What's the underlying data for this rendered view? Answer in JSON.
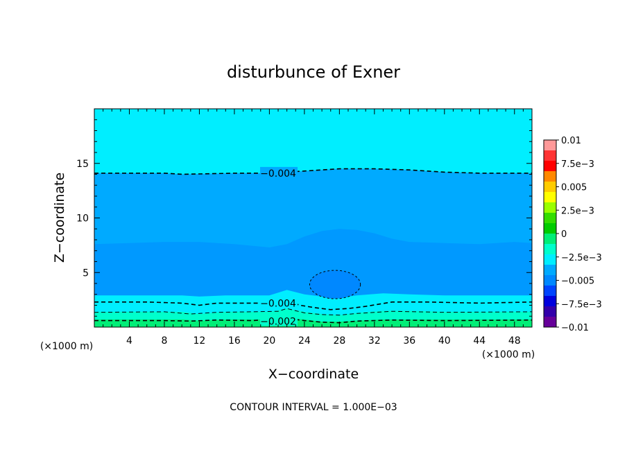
{
  "chart_data": {
    "type": "contour",
    "title": "disturbunce of Exner",
    "xlabel": "X−coordinate",
    "ylabel": "Z−coordinate",
    "x_unit": "(×1000 m)",
    "y_unit": "(×1000 m)",
    "xlim": [
      0,
      50
    ],
    "ylim": [
      0,
      20
    ],
    "x_ticks": [
      4,
      8,
      12,
      16,
      20,
      24,
      28,
      32,
      36,
      40,
      44,
      48
    ],
    "y_ticks": [
      5,
      10,
      15
    ],
    "contour_interval_text": "CONTOUR INTERVAL = 1.000E−03",
    "colorbar": {
      "labels": [
        "0.01",
        "7.5e−3",
        "0.005",
        "2.5e−3",
        "0",
        "−2.5e−3",
        "−0.005",
        "−7.5e−3",
        "−0.01"
      ],
      "colors": [
        "#ff9999",
        "#ff3333",
        "#ff0000",
        "#ff8800",
        "#ffcc00",
        "#ffff00",
        "#99ff00",
        "#33dd00",
        "#00cc00",
        "#00ee77",
        "#00ffcc",
        "#00eeff",
        "#00aaff",
        "#0088ff",
        "#0044ff",
        "#0000dd",
        "#3300aa",
        "#660099"
      ]
    },
    "contour_labels": [
      {
        "text": "−0.004",
        "x": 21.0,
        "z": 14.1
      },
      {
        "text": "−0.004",
        "x": 21.0,
        "z": 2.2
      },
      {
        "text": "−0.002",
        "x": 21.0,
        "z": 0.55
      }
    ],
    "bands": [
      {
        "level": "−0.001",
        "color": "#00ee77",
        "top": [
          [
            0,
            0.7
          ],
          [
            10,
            0.7
          ],
          [
            12,
            0.6
          ],
          [
            15,
            0.7
          ],
          [
            20,
            0.7
          ],
          [
            22,
            0.8
          ],
          [
            24,
            0.7
          ],
          [
            26,
            0.5
          ],
          [
            28,
            0.5
          ],
          [
            30,
            0.6
          ],
          [
            33,
            0.7
          ],
          [
            36,
            0.7
          ],
          [
            40,
            0.7
          ],
          [
            44,
            0.7
          ],
          [
            48,
            0.7
          ],
          [
            50,
            0.7
          ]
        ]
      },
      {
        "level": "−0.002",
        "color": "#00ffcc",
        "top": [
          [
            0,
            1.4
          ],
          [
            10,
            1.4
          ],
          [
            12,
            1.2
          ],
          [
            15,
            1.4
          ],
          [
            20,
            1.4
          ],
          [
            22,
            1.7
          ],
          [
            24,
            1.4
          ],
          [
            26,
            1.2
          ],
          [
            28,
            1.1
          ],
          [
            30,
            1.3
          ],
          [
            33,
            1.5
          ],
          [
            36,
            1.5
          ],
          [
            40,
            1.4
          ],
          [
            44,
            1.4
          ],
          [
            48,
            1.4
          ],
          [
            50,
            1.4
          ]
        ]
      },
      {
        "level": "−0.003",
        "color": "#00eeff",
        "top": [
          [
            0,
            2.9
          ],
          [
            10,
            2.9
          ],
          [
            12,
            2.8
          ],
          [
            15,
            2.9
          ],
          [
            20,
            2.9
          ],
          [
            22,
            3.4
          ],
          [
            24,
            3.0
          ],
          [
            26,
            2.8
          ],
          [
            28,
            2.7
          ],
          [
            30,
            2.9
          ],
          [
            33,
            3.1
          ],
          [
            36,
            3.0
          ],
          [
            40,
            2.9
          ],
          [
            44,
            2.9
          ],
          [
            48,
            2.9
          ],
          [
            50,
            2.9
          ]
        ]
      },
      {
        "level": "−0.004",
        "color": "#00aaff",
        "top": [
          [
            0,
            7.6
          ],
          [
            4,
            7.7
          ],
          [
            8,
            7.8
          ],
          [
            12,
            7.8
          ],
          [
            16,
            7.6
          ],
          [
            20,
            7.3
          ],
          [
            22,
            7.6
          ],
          [
            24,
            8.3
          ],
          [
            26,
            8.8
          ],
          [
            28,
            9.0
          ],
          [
            30,
            8.9
          ],
          [
            32,
            8.6
          ],
          [
            34,
            8.1
          ],
          [
            36,
            7.8
          ],
          [
            40,
            7.7
          ],
          [
            44,
            7.6
          ],
          [
            48,
            7.8
          ],
          [
            50,
            7.7
          ]
        ]
      }
    ],
    "contours_dashed": [
      {
        "level": "−0.004",
        "points": [
          [
            0,
            14.1
          ],
          [
            8,
            14.1
          ],
          [
            10,
            14.0
          ],
          [
            16,
            14.1
          ],
          [
            20,
            14.1
          ],
          [
            24,
            14.3
          ],
          [
            28,
            14.5
          ],
          [
            32,
            14.5
          ],
          [
            36,
            14.4
          ],
          [
            40,
            14.2
          ],
          [
            44,
            14.1
          ],
          [
            50,
            14.1
          ]
        ]
      },
      {
        "level": "−0.004",
        "points": [
          [
            0,
            2.3
          ],
          [
            6,
            2.3
          ],
          [
            10,
            2.2
          ],
          [
            12,
            2.0
          ],
          [
            14,
            2.2
          ],
          [
            18,
            2.2
          ],
          [
            21,
            2.2
          ],
          [
            22,
            2.4
          ],
          [
            23.5,
            2.0
          ],
          [
            25,
            1.8
          ],
          [
            27,
            1.6
          ],
          [
            29,
            1.7
          ],
          [
            31,
            1.9
          ],
          [
            34,
            2.3
          ],
          [
            38,
            2.3
          ],
          [
            44,
            2.2
          ],
          [
            50,
            2.3
          ]
        ]
      },
      {
        "level": "−0.003",
        "points": [
          [
            0,
            1.35
          ],
          [
            8,
            1.4
          ],
          [
            11,
            1.2
          ],
          [
            14,
            1.35
          ],
          [
            18,
            1.4
          ],
          [
            21,
            1.45
          ],
          [
            22,
            1.7
          ],
          [
            24,
            1.3
          ],
          [
            26,
            1.15
          ],
          [
            28,
            1.1
          ],
          [
            30,
            1.25
          ],
          [
            34,
            1.45
          ],
          [
            40,
            1.35
          ],
          [
            50,
            1.4
          ]
        ]
      },
      {
        "level": "−0.002",
        "points": [
          [
            0,
            0.6
          ],
          [
            8,
            0.6
          ],
          [
            11,
            0.55
          ],
          [
            14,
            0.65
          ],
          [
            18,
            0.6
          ],
          [
            22,
            0.8
          ],
          [
            24,
            0.6
          ],
          [
            26,
            0.45
          ],
          [
            28,
            0.4
          ],
          [
            30,
            0.55
          ],
          [
            34,
            0.65
          ],
          [
            40,
            0.6
          ],
          [
            50,
            0.65
          ]
        ]
      }
    ],
    "closed_contour": {
      "level": "−0.005",
      "color": "#0088ff",
      "center": [
        27.5,
        3.9
      ],
      "rx": 2.9,
      "rz": 1.3
    }
  }
}
